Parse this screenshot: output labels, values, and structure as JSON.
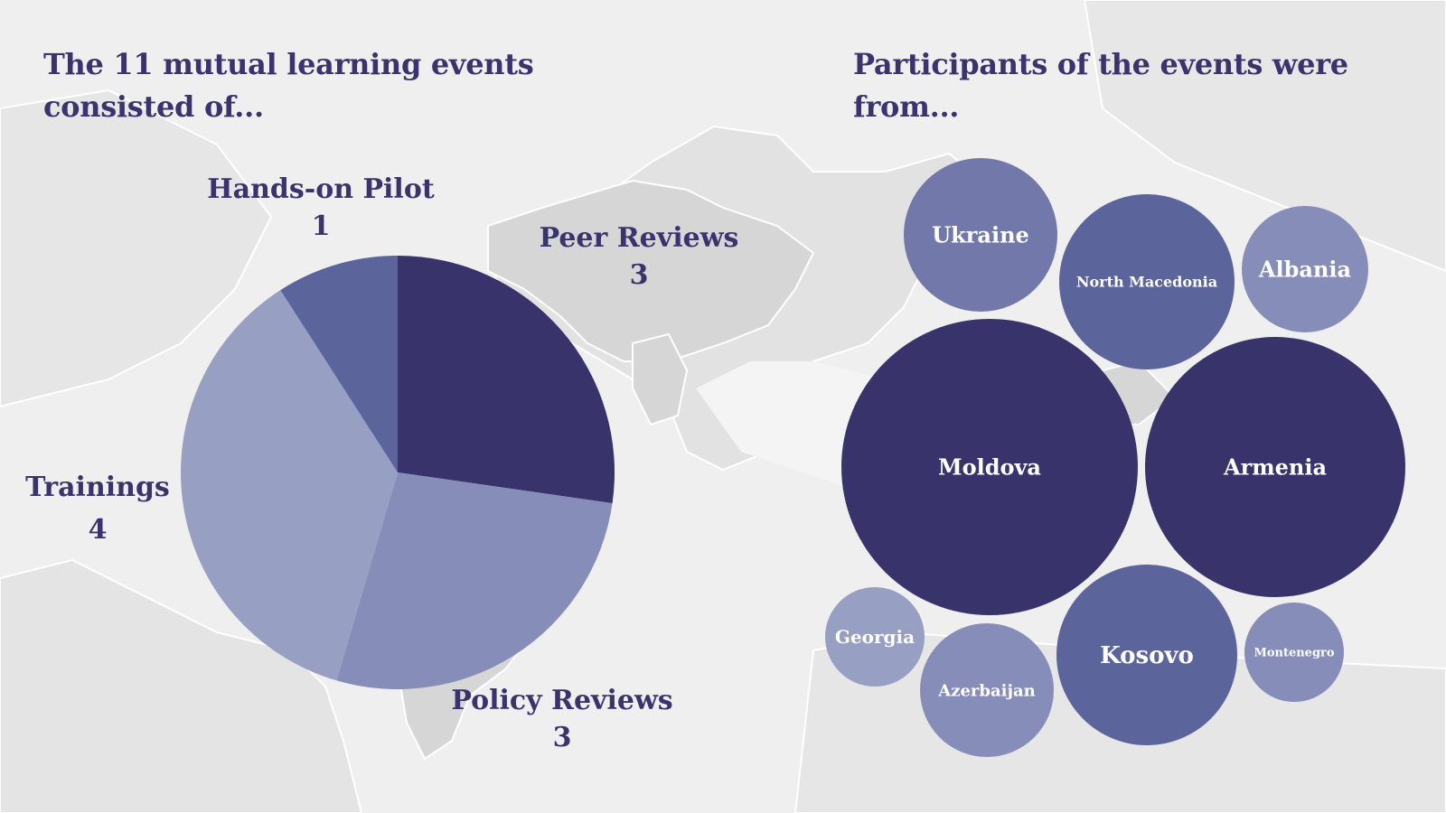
{
  "titles": {
    "left": "The 11 mutual learning events consisted of...",
    "right": "Participants of the events were from..."
  },
  "colors": {
    "text": "#3a336e",
    "background": "#efefef",
    "land": "#e3e3e3",
    "highlighted_land": "#d5d5d5",
    "borders": "#ffffff"
  },
  "chart_data": [
    {
      "type": "pie",
      "title": "The 11 mutual learning events consisted of...",
      "slices": [
        {
          "label": "Peer Reviews",
          "value": 3,
          "color": "#39336c"
        },
        {
          "label": "Policy Reviews",
          "value": 3,
          "color": "#868db8"
        },
        {
          "label": "Trainings",
          "value": 4,
          "color": "#979fc2"
        },
        {
          "label": "Hands-on Pilot",
          "value": 1,
          "color": "#5c649c"
        }
      ]
    },
    {
      "type": "bubble",
      "title": "Participants of the events were from...",
      "bubbles": [
        {
          "label": "Ukraine",
          "color": "#7279aa"
        },
        {
          "label": "North Macedonia",
          "color": "#5c649c"
        },
        {
          "label": "Albania",
          "color": "#868db8"
        },
        {
          "label": "Moldova",
          "color": "#39336c"
        },
        {
          "label": "Armenia",
          "color": "#39336c"
        },
        {
          "label": "Georgia",
          "color": "#979fc2"
        },
        {
          "label": "Azerbaijan",
          "color": "#868db8"
        },
        {
          "label": "Kosovo",
          "color": "#5c649c"
        },
        {
          "label": "Montenegro",
          "color": "#868db8"
        }
      ]
    }
  ]
}
